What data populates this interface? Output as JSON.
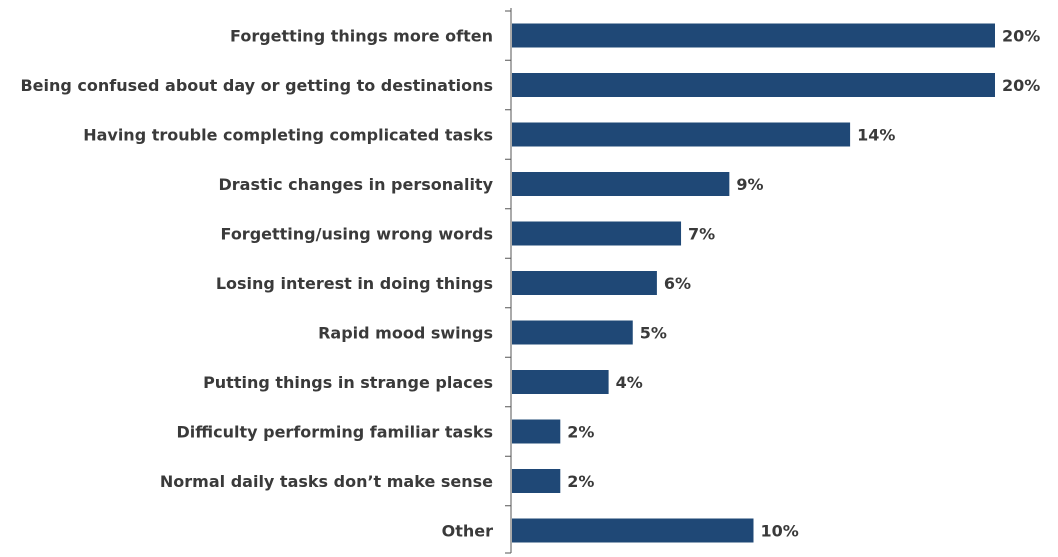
{
  "chart_data": {
    "type": "bar",
    "orientation": "horizontal",
    "categories": [
      "Forgetting things more often",
      "Being confused about day or getting to destinations",
      "Having trouble completing complicated tasks",
      "Drastic changes in personality",
      "Forgetting/using wrong words",
      "Losing interest in doing things",
      "Rapid mood swings",
      "Putting things in strange places",
      "Difficulty performing familiar tasks",
      "Normal daily tasks don’t make sense",
      "Other"
    ],
    "values": [
      20,
      20,
      14,
      9,
      7,
      6,
      5,
      4,
      2,
      2,
      10
    ],
    "value_labels": [
      "20%",
      "20%",
      "14%",
      "9%",
      "7%",
      "6%",
      "5%",
      "4%",
      "2%",
      "2%",
      "10%"
    ],
    "unit": "%",
    "xlim": [
      0,
      20
    ],
    "grid": false,
    "legend": "none",
    "bar_color": "#1f4876"
  }
}
